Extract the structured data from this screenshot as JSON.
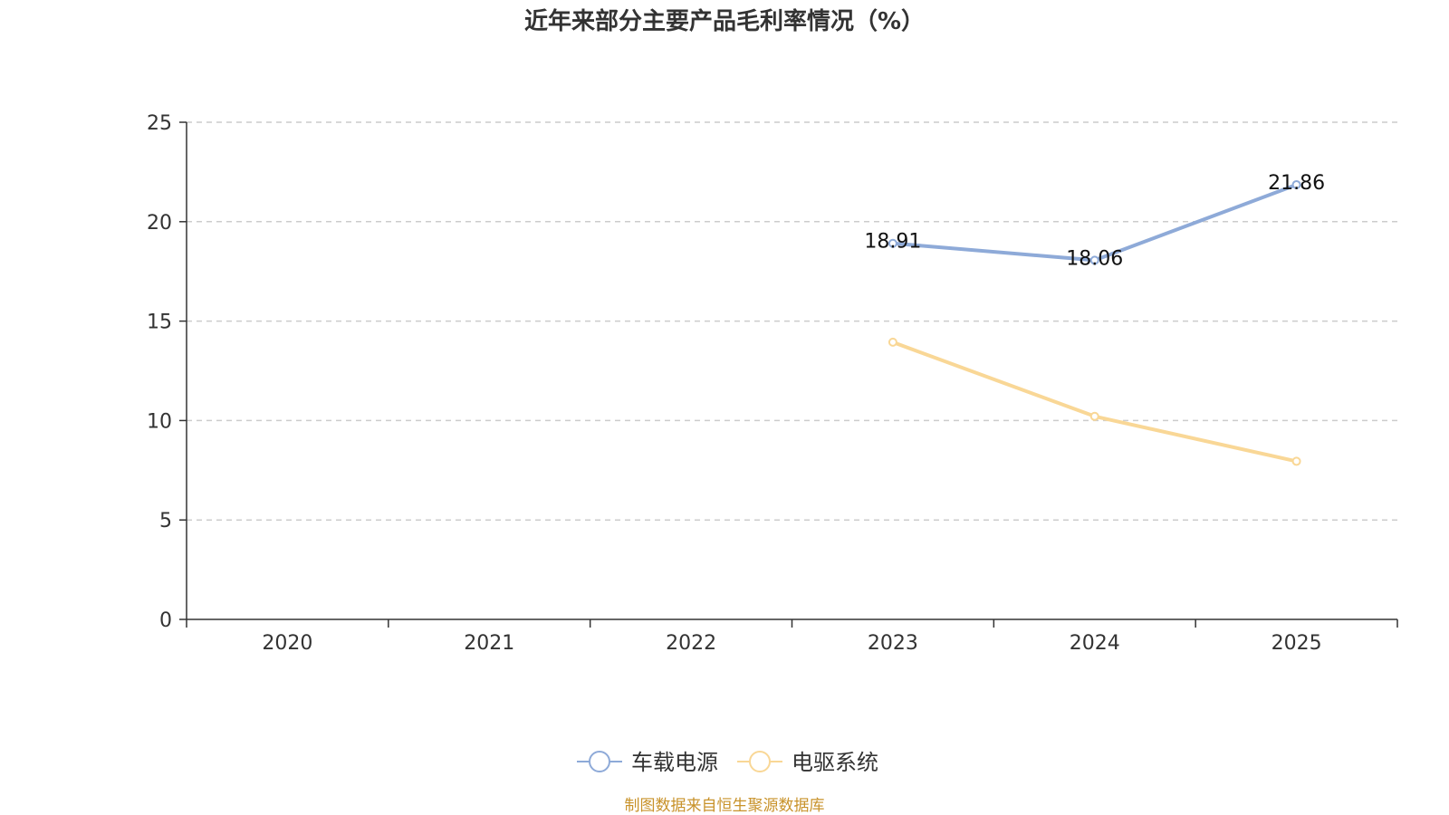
{
  "chart_data": {
    "type": "line",
    "title": "近年来部分主要产品毛利率情况（%）",
    "categories": [
      "2020",
      "2021",
      "2022",
      "2023",
      "2024",
      "2025"
    ],
    "ylim": [
      0,
      25
    ],
    "yticks": [
      0,
      5,
      10,
      15,
      20,
      25
    ],
    "grid": true,
    "legend_position": "bottom-center",
    "series": [
      {
        "name": "车载电源",
        "color": "#8eaad8",
        "values": [
          null,
          null,
          null,
          18.91,
          18.06,
          21.86
        ],
        "labels": [
          "",
          "",
          "",
          "18.91",
          "18.06",
          "21.86"
        ]
      },
      {
        "name": "电驱系统",
        "color": "#f9d796",
        "values": [
          null,
          null,
          null,
          13.94,
          10.21,
          7.95
        ],
        "labels": [
          "",
          "",
          "",
          "",
          "",
          ""
        ]
      }
    ]
  },
  "source": {
    "text": "制图数据来自恒生聚源数据库",
    "color": "#c8922a"
  }
}
